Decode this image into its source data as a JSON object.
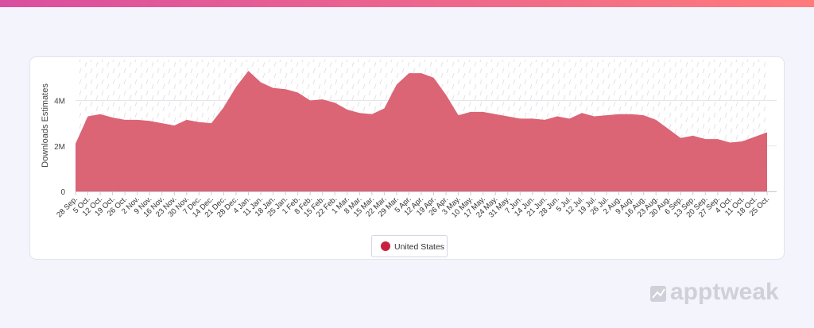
{
  "chart_data": {
    "type": "area",
    "y_label": "Downloads Estimates",
    "categories": [
      "28 Sep.",
      "5 Oct.",
      "12 Oct.",
      "19 Oct.",
      "26 Oct.",
      "2 Nov.",
      "9 Nov.",
      "16 Nov.",
      "23 Nov.",
      "30 Nov.",
      "7 Dec.",
      "14 Dec.",
      "21 Dec.",
      "28 Dec.",
      "4 Jan.",
      "11 Jan.",
      "18 Jan.",
      "25 Jan.",
      "1 Feb.",
      "8 Feb.",
      "15 Feb.",
      "22 Feb.",
      "1 Mar.",
      "8 Mar.",
      "15 Mar.",
      "22 Mar.",
      "29 Mar.",
      "5 Apr.",
      "12 Apr.",
      "19 Apr.",
      "26 Apr.",
      "3 May.",
      "10 May.",
      "17 May.",
      "24 May.",
      "31 May.",
      "7 Jun.",
      "14 Jun.",
      "21 Jun.",
      "28 Jun.",
      "5 Jul.",
      "12 Jul.",
      "19 Jul.",
      "26 Jul.",
      "2 Aug.",
      "9 Aug.",
      "16 Aug.",
      "23 Aug.",
      "30 Aug.",
      "6 Sep.",
      "13 Sep.",
      "20 Sep.",
      "27 Sep.",
      "4 Oct.",
      "11 Oct.",
      "18 Oct.",
      "25 Oct."
    ],
    "series": [
      {
        "name": "United States",
        "color": "#d95c6e",
        "values": [
          2100000,
          3300000,
          3400000,
          3250000,
          3150000,
          3150000,
          3100000,
          3000000,
          2900000,
          3150000,
          3050000,
          3000000,
          3700000,
          4600000,
          5300000,
          4800000,
          4550000,
          4500000,
          4350000,
          4000000,
          4050000,
          3900000,
          3600000,
          3450000,
          3400000,
          3650000,
          4700000,
          5200000,
          5200000,
          5000000,
          4250000,
          3350000,
          3500000,
          3500000,
          3400000,
          3300000,
          3200000,
          3200000,
          3150000,
          3300000,
          3200000,
          3450000,
          3300000,
          3350000,
          3400000,
          3400000,
          3350000,
          3150000,
          2750000,
          2350000,
          2450000,
          2300000,
          2300000,
          2150000,
          2200000,
          2400000,
          2600000
        ]
      }
    ],
    "ylim": [
      0,
      5800000
    ],
    "yticks": [
      0,
      {
        "value": 2000000,
        "label": "2M"
      },
      {
        "value": 4000000,
        "label": "4M"
      }
    ],
    "grid": true,
    "legend": "bottom"
  },
  "watermark": "apptweak"
}
